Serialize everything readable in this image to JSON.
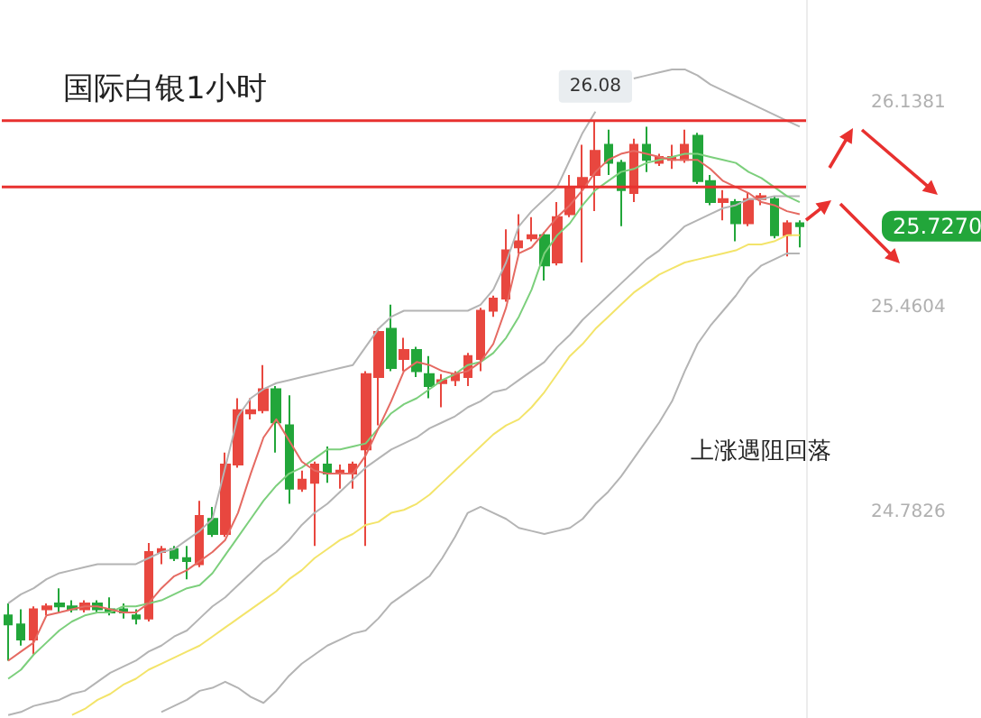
{
  "chart_data": {
    "type": "candlestick",
    "title": "国际白银1小时",
    "categories": [
      null,
      null,
      null,
      null,
      null,
      null,
      null,
      null,
      null,
      null,
      null,
      null,
      null,
      null,
      null,
      null,
      null,
      null,
      null,
      null,
      null,
      null,
      null,
      null,
      null,
      null,
      null,
      null,
      null,
      null,
      null,
      null,
      null,
      null,
      null,
      null,
      null,
      null,
      null,
      null,
      null,
      null,
      null,
      null,
      null,
      null,
      null,
      null,
      null,
      null,
      null,
      null,
      null,
      null,
      null,
      null,
      null,
      null,
      null,
      null,
      null,
      null,
      null
    ],
    "ohlc": [
      [
        24.44,
        24.48,
        24.29,
        24.41
      ],
      [
        24.41,
        24.46,
        24.34,
        24.36
      ],
      [
        24.36,
        24.47,
        24.31,
        24.46
      ],
      [
        24.46,
        24.48,
        24.44,
        24.47
      ],
      [
        24.48,
        24.53,
        24.45,
        24.47
      ],
      [
        24.47,
        24.49,
        24.45,
        24.46
      ],
      [
        24.46,
        24.49,
        24.45,
        24.48
      ],
      [
        24.48,
        24.49,
        24.45,
        24.46
      ],
      [
        24.46,
        24.5,
        24.44,
        24.45
      ],
      [
        24.46,
        24.48,
        24.43,
        24.45
      ],
      [
        24.44,
        24.46,
        24.41,
        24.43
      ],
      [
        24.43,
        24.68,
        24.42,
        24.65
      ],
      [
        24.65,
        24.67,
        24.61,
        24.66
      ],
      [
        24.66,
        24.67,
        24.62,
        24.63
      ],
      [
        24.63,
        24.67,
        24.56,
        24.62
      ],
      [
        24.61,
        24.82,
        24.6,
        24.77
      ],
      [
        24.76,
        24.8,
        24.7,
        24.71
      ],
      [
        24.71,
        24.98,
        24.7,
        24.94
      ],
      [
        24.94,
        25.16,
        24.93,
        25.12
      ],
      [
        25.11,
        25.16,
        25.09,
        25.12
      ],
      [
        25.12,
        25.27,
        25.11,
        25.19
      ],
      [
        25.19,
        25.2,
        24.98,
        25.08
      ],
      [
        25.07,
        25.17,
        24.81,
        24.86
      ],
      [
        24.86,
        24.92,
        24.85,
        24.89
      ],
      [
        24.88,
        24.95,
        24.67,
        24.94
      ],
      [
        24.94,
        25.0,
        24.88,
        24.91
      ],
      [
        24.91,
        24.94,
        24.86,
        24.92
      ],
      [
        24.91,
        24.95,
        24.86,
        24.94
      ],
      [
        24.99,
        25.25,
        24.67,
        25.24
      ],
      [
        25.23,
        25.39,
        25.07,
        25.38
      ],
      [
        25.39,
        25.47,
        25.25,
        25.26
      ],
      [
        25.29,
        25.36,
        25.25,
        25.32
      ],
      [
        25.32,
        25.33,
        25.23,
        25.25
      ],
      [
        25.24,
        25.3,
        25.16,
        25.2
      ],
      [
        25.21,
        25.24,
        25.13,
        25.22
      ],
      [
        25.22,
        25.25,
        25.2,
        25.24
      ],
      [
        25.23,
        25.31,
        25.2,
        25.3
      ],
      [
        25.29,
        25.46,
        25.25,
        25.45
      ],
      [
        25.45,
        25.5,
        25.43,
        25.49
      ],
      [
        25.49,
        25.72,
        25.48,
        25.65
      ],
      [
        25.66,
        25.77,
        25.64,
        25.68
      ],
      [
        25.69,
        25.76,
        25.68,
        25.7
      ],
      [
        25.7,
        25.71,
        25.55,
        25.6
      ],
      [
        25.61,
        25.81,
        25.6,
        25.76
      ],
      [
        25.77,
        25.9,
        25.76,
        25.86
      ],
      [
        25.86,
        26.0,
        25.61,
        25.89
      ],
      [
        25.9,
        26.08,
        25.78,
        25.98
      ],
      [
        26.0,
        26.05,
        25.9,
        25.94
      ],
      [
        25.94,
        25.95,
        25.73,
        25.85
      ],
      [
        25.84,
        26.02,
        25.81,
        26.0
      ],
      [
        26.0,
        26.06,
        25.91,
        25.95
      ],
      [
        25.94,
        25.97,
        25.93,
        25.96
      ],
      [
        25.95,
        26.0,
        25.92,
        25.96
      ],
      [
        25.95,
        26.05,
        25.94,
        26.0
      ],
      [
        26.03,
        26.04,
        25.87,
        25.88
      ],
      [
        25.88,
        25.9,
        25.8,
        25.81
      ],
      [
        25.81,
        25.85,
        25.75,
        25.82
      ],
      [
        25.81,
        25.82,
        25.68,
        25.74
      ],
      [
        25.74,
        25.84,
        25.73,
        25.82
      ],
      [
        25.82,
        25.84,
        25.8,
        25.83
      ],
      [
        25.82,
        25.83,
        25.69,
        25.7
      ],
      [
        25.7,
        25.75,
        25.63,
        25.74
      ],
      [
        25.74,
        25.75,
        25.66,
        25.73
      ]
    ],
    "series": [
      {
        "type": "line",
        "color": "#b4b4b4",
        "values": [
          24.48,
          24.51,
          24.53,
          24.56,
          24.58,
          24.59,
          24.6,
          24.61,
          24.61,
          24.61,
          24.61,
          24.63,
          24.65,
          24.66,
          24.69,
          24.72,
          24.76,
          24.93,
          25.1,
          25.16,
          25.19,
          25.21,
          25.22,
          25.23,
          25.24,
          25.25,
          25.26,
          25.27,
          25.33,
          25.39,
          25.43,
          25.45,
          25.45,
          25.45,
          25.45,
          25.45,
          25.45,
          25.47,
          25.52,
          25.61,
          25.73,
          25.78,
          25.82,
          25.86,
          25.95,
          26.04,
          26.11,
          null,
          null,
          26.22,
          26.23,
          26.24,
          26.25,
          26.25,
          26.23,
          26.2,
          26.18,
          26.16,
          26.14,
          26.12,
          26.1,
          26.08,
          26.06
        ]
      },
      {
        "type": "line",
        "color": "#b4b4b4",
        "values": [
          24.11,
          24.12,
          24.14,
          24.15,
          24.16,
          24.18,
          24.19,
          24.22,
          24.25,
          24.27,
          24.29,
          24.32,
          24.34,
          24.37,
          24.39,
          24.43,
          24.47,
          24.5,
          24.54,
          24.58,
          24.62,
          24.65,
          24.69,
          24.74,
          24.78,
          24.81,
          24.85,
          24.89,
          24.93,
          24.96,
          24.99,
          25.01,
          25.03,
          25.06,
          25.08,
          25.1,
          25.13,
          25.15,
          25.18,
          25.19,
          25.22,
          25.25,
          25.28,
          25.33,
          25.37,
          25.42,
          25.46,
          25.5,
          25.54,
          25.58,
          25.62,
          25.65,
          25.69,
          25.73,
          25.75,
          25.77,
          25.79,
          25.8,
          25.82,
          25.82,
          25.83,
          25.83,
          25.83
        ]
      },
      {
        "type": "line",
        "color": "#b4b4b4",
        "values": [
          null,
          null,
          null,
          null,
          null,
          null,
          null,
          null,
          null,
          null,
          null,
          null,
          24.12,
          24.14,
          24.16,
          24.19,
          24.2,
          24.22,
          24.2,
          24.17,
          24.15,
          24.19,
          24.24,
          24.28,
          24.31,
          24.34,
          24.36,
          24.38,
          24.39,
          24.43,
          24.48,
          24.51,
          24.54,
          24.57,
          24.63,
          24.7,
          24.78,
          24.8,
          24.78,
          24.76,
          24.73,
          24.72,
          24.71,
          24.72,
          24.73,
          24.76,
          24.81,
          24.85,
          24.9,
          24.96,
          25.02,
          25.08,
          25.15,
          25.25,
          25.34,
          25.4,
          25.45,
          25.5,
          25.56,
          25.6,
          25.62,
          25.64,
          25.64
        ]
      },
      {
        "type": "line",
        "color": "#f3e46a",
        "values": [
          null,
          null,
          null,
          null,
          null,
          24.11,
          24.13,
          24.16,
          24.18,
          24.21,
          24.23,
          24.26,
          24.28,
          24.3,
          24.32,
          24.34,
          24.37,
          24.4,
          24.43,
          24.46,
          24.49,
          24.52,
          24.56,
          24.59,
          24.63,
          24.66,
          24.69,
          24.71,
          24.74,
          24.75,
          24.78,
          24.79,
          24.81,
          24.84,
          24.88,
          24.92,
          24.96,
          25.0,
          25.04,
          25.07,
          25.09,
          25.13,
          25.18,
          25.24,
          25.3,
          25.34,
          25.39,
          25.43,
          25.47,
          25.51,
          25.54,
          25.57,
          25.59,
          25.61,
          25.62,
          25.63,
          25.64,
          25.65,
          25.67,
          25.67,
          25.68,
          25.7,
          25.7
        ]
      },
      {
        "type": "line",
        "color": "#7ccf7c",
        "values": [
          24.23,
          24.26,
          24.31,
          24.35,
          24.39,
          24.42,
          24.44,
          24.45,
          24.45,
          24.47,
          24.47,
          24.48,
          24.49,
          24.51,
          24.53,
          24.54,
          24.58,
          24.64,
          24.7,
          24.76,
          24.82,
          24.87,
          24.91,
          24.93,
          24.96,
          24.99,
          24.99,
          25.0,
          25.01,
          25.06,
          25.11,
          25.14,
          25.16,
          25.19,
          25.22,
          25.24,
          25.27,
          25.28,
          25.31,
          25.36,
          25.43,
          25.52,
          25.64,
          25.7,
          25.74,
          25.8,
          25.85,
          25.88,
          25.91,
          25.92,
          25.94,
          25.95,
          25.96,
          25.97,
          25.97,
          25.96,
          25.95,
          25.94,
          25.91,
          25.89,
          25.86,
          25.83,
          25.81
        ]
      },
      {
        "type": "line",
        "color": "#e56a62",
        "values": [
          24.29,
          24.32,
          24.35,
          24.44,
          24.45,
          24.46,
          24.47,
          24.47,
          24.46,
          24.45,
          24.45,
          24.48,
          24.53,
          24.57,
          24.59,
          24.62,
          24.65,
          24.69,
          24.78,
          24.91,
          25.03,
          25.09,
          25.02,
          24.95,
          24.92,
          24.91,
          24.91,
          24.91,
          24.97,
          25.06,
          25.15,
          25.25,
          25.28,
          25.27,
          25.25,
          25.24,
          25.25,
          25.28,
          25.34,
          25.46,
          25.64,
          25.66,
          25.71,
          25.76,
          25.8,
          25.85,
          25.91,
          25.95,
          25.97,
          25.98,
          25.97,
          25.96,
          25.95,
          25.95,
          25.95,
          25.92,
          25.88,
          25.86,
          25.84,
          25.81,
          25.8,
          25.78,
          25.77
        ]
      }
    ],
    "ylim": [
      24.1,
      26.48
    ],
    "yticks": [
      26.1381,
      25.4604,
      24.7826
    ],
    "tick_labels": "y",
    "grid": false,
    "marker": "none",
    "ref_lines": [
      {
        "axis": "y",
        "value": 26.08,
        "color": "#e8312f"
      },
      {
        "axis": "y",
        "value": 25.86,
        "color": "#e8312f"
      }
    ],
    "annotations": [
      "上涨遇阻回落",
      {
        "text": "26.08",
        "y": 26.08
      },
      "25.7270"
    ]
  }
}
